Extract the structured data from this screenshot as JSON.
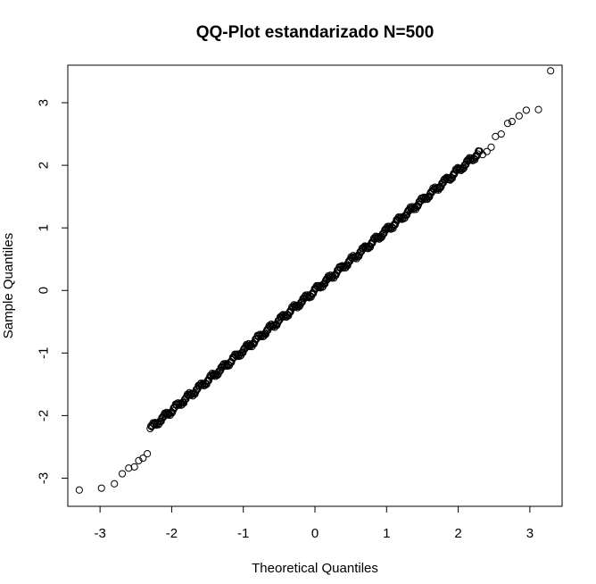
{
  "chart_data": {
    "type": "scatter",
    "title": "QQ-Plot estandarizado N=500",
    "xlabel": "Theoretical Quantiles",
    "ylabel": "Sample Quantiles",
    "xlim": [
      -3.45,
      3.45
    ],
    "ylim": [
      -3.45,
      3.6
    ],
    "x_ticks": [
      -3,
      -2,
      -1,
      0,
      1,
      2,
      3
    ],
    "y_ticks": [
      -3,
      -2,
      -1,
      0,
      1,
      2,
      3
    ],
    "grid": false,
    "legend": "none",
    "marker": "open-circle",
    "n": 500,
    "dense_center": {
      "x_from": -2.3,
      "x_to": 2.3,
      "intercept": 0.0,
      "slope": 0.96
    },
    "tail_points": [
      {
        "x": -3.29,
        "y": -3.19
      },
      {
        "x": -2.98,
        "y": -3.16
      },
      {
        "x": -2.8,
        "y": -3.09
      },
      {
        "x": -2.69,
        "y": -2.93
      },
      {
        "x": -2.6,
        "y": -2.84
      },
      {
        "x": -2.52,
        "y": -2.82
      },
      {
        "x": -2.46,
        "y": -2.72
      },
      {
        "x": -2.4,
        "y": -2.68
      },
      {
        "x": -2.34,
        "y": -2.61
      },
      {
        "x": 2.34,
        "y": 2.17
      },
      {
        "x": 2.4,
        "y": 2.22
      },
      {
        "x": 2.46,
        "y": 2.29
      },
      {
        "x": 2.52,
        "y": 2.46
      },
      {
        "x": 2.6,
        "y": 2.5
      },
      {
        "x": 2.69,
        "y": 2.67
      },
      {
        "x": 2.75,
        "y": 2.7
      },
      {
        "x": 2.85,
        "y": 2.79
      },
      {
        "x": 2.95,
        "y": 2.88
      },
      {
        "x": 3.12,
        "y": 2.89
      },
      {
        "x": 3.29,
        "y": 3.51
      }
    ]
  }
}
